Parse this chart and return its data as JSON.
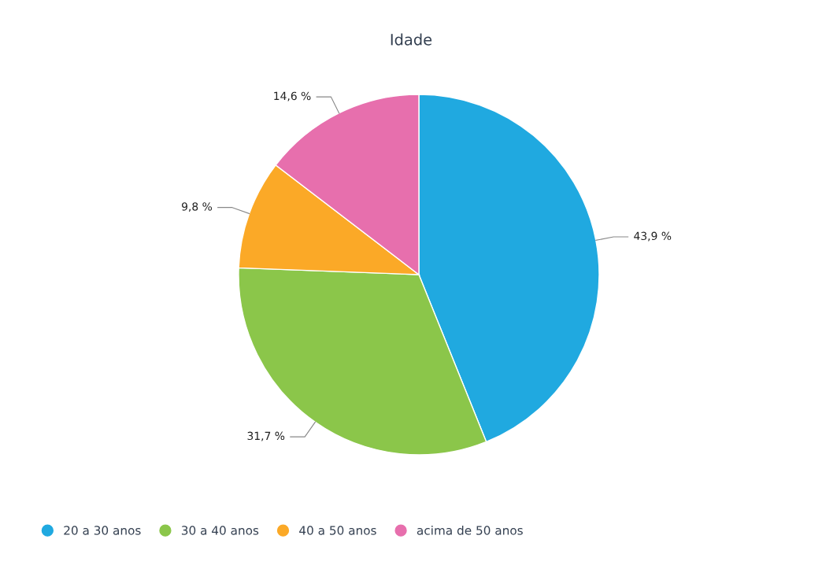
{
  "chart_data": {
    "type": "pie",
    "title": "Idade",
    "categories": [
      "20 a 30 anos",
      "30 a 40 anos",
      "40 a 50 anos",
      "acima de 50 anos"
    ],
    "values": [
      43.9,
      31.7,
      9.8,
      14.6
    ],
    "value_labels": [
      "43,9 %",
      "31,7 %",
      "9,8 %",
      "14,6 %"
    ],
    "colors": [
      "#20a9e0",
      "#8bc64a",
      "#fba927",
      "#e76fad"
    ],
    "legend": "bottom left"
  }
}
